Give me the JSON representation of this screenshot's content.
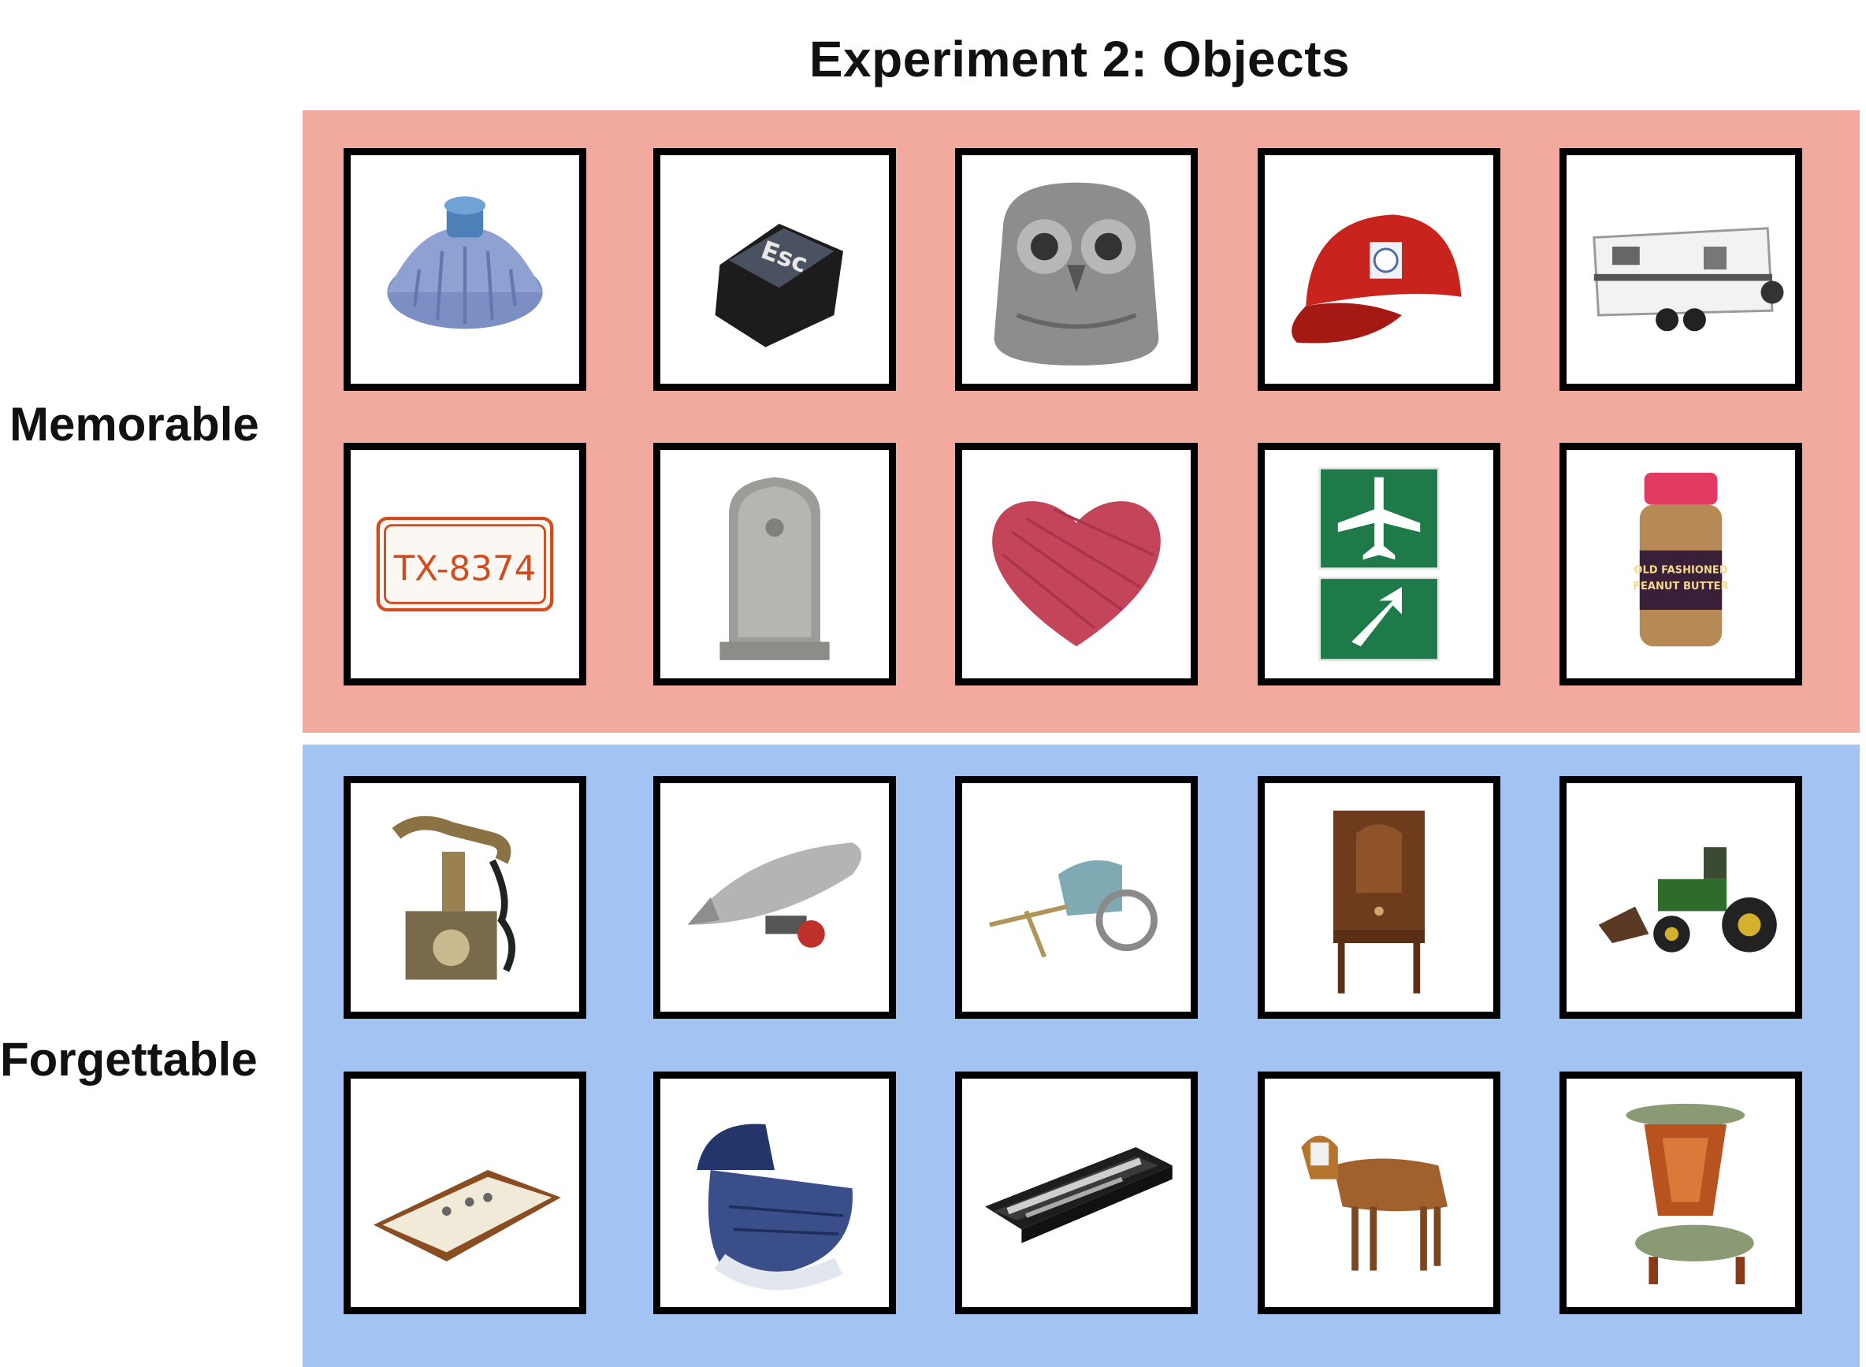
{
  "figure": {
    "title": "Experiment 2: Objects"
  },
  "rows": {
    "memorable": {
      "label": "Memorable"
    },
    "forgettable": {
      "label": "Forgettable"
    }
  },
  "objects": {
    "license_plate_text": "TX-8374",
    "esc_key_text": "Esc",
    "peanut_butter_lines": [
      "OLD FASHIONED",
      "PEANUT BUTTER"
    ]
  },
  "colors": {
    "memorable_band": "#f2a99e",
    "forgettable_band": "#a3c4f3"
  }
}
